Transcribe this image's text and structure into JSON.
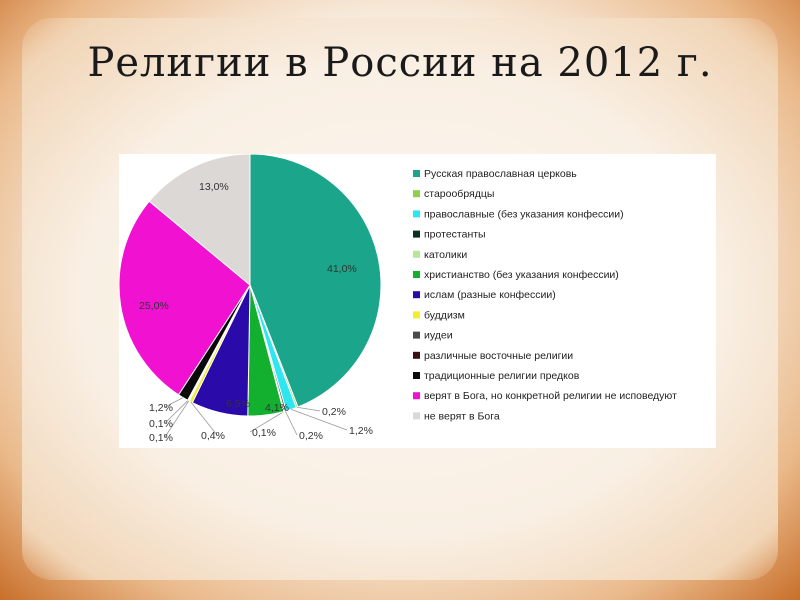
{
  "slide": {
    "title": "Религии в России на 2012 г."
  },
  "chart_data": {
    "type": "pie",
    "legend_position": "right",
    "slices": [
      {
        "name": "Русская православная церковь",
        "value": 41.0,
        "label": "41,0%",
        "color": "#1ba58a"
      },
      {
        "name": "старообрядцы",
        "value": 0.2,
        "label": "0,2%",
        "color": "#8fd04a"
      },
      {
        "name": "православные (без указания конфессии)",
        "value": 1.2,
        "label": "1,2%",
        "color": "#2ee6ef"
      },
      {
        "name": "протестанты",
        "value": 0.2,
        "label": "0,2%",
        "color": "#0b3020"
      },
      {
        "name": "католики",
        "value": 0.1,
        "label": "0,1%",
        "color": "#b9e59a"
      },
      {
        "name": "христианство (без указания конфессии)",
        "value": 4.1,
        "label": "4,1%",
        "color": "#12b02e"
      },
      {
        "name": " ислам (разные конфессии)",
        "value": 6.5,
        "label": "6,5%",
        "color": "#2a0aa8"
      },
      {
        "name": "буддизм",
        "value": 0.4,
        "label": "0,4%",
        "color": "#f2ee2a"
      },
      {
        "name": "иудеи",
        "value": 0.1,
        "label": "0,1%",
        "color": "#4a4a4a"
      },
      {
        "name": "различные восточные религии",
        "value": 0.1,
        "label": "0,1%",
        "color": "#3a1010"
      },
      {
        "name": "традиционные религии предков",
        "value": 1.2,
        "label": "1,2%",
        "color": "#0a0a0a"
      },
      {
        "name": "верят в Бога, но конкретной религии не исповедуют",
        "value": 25.0,
        "label": "25,0%",
        "color": "#f012d0"
      },
      {
        "name": "не верят в Бога",
        "value": 13.0,
        "label": "13,0%",
        "color": "#dcd8d6"
      }
    ]
  }
}
